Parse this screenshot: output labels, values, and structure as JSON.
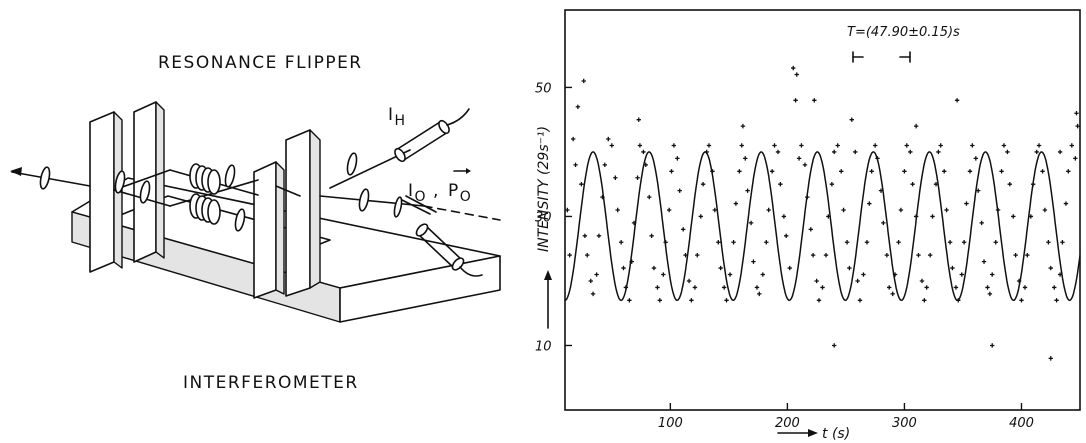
{
  "diagram": {
    "title": "RESONANCE FLIPPER",
    "bottom_label": "INTERFEROMETER",
    "label_ih_main": "I",
    "label_ih_sub": "H",
    "label_io_main": "I",
    "label_io_sub": "O",
    "label_po_main": "P",
    "label_po_sub": "O",
    "label_sep": ","
  },
  "chart_data": {
    "type": "scatter",
    "title": "",
    "ylabel": "INTENSITY  (29s⁻¹)",
    "xlabel": "t (s)",
    "annotation": "T=(47.90±0.15)s",
    "xlim": [
      10,
      450
    ],
    "ylim": [
      0,
      62
    ],
    "xticks": [
      100,
      200,
      300,
      400
    ],
    "yticks": [
      10,
      30,
      50
    ],
    "xtick_labels": [
      "100",
      "200",
      "300",
      "400"
    ],
    "ytick_labels": [
      "10",
      "30",
      "50"
    ],
    "fit": {
      "mean": 28.5,
      "amplitude": 11.5,
      "period": 47.9,
      "phase_ref": 22
    },
    "points": [
      [
        12,
        31
      ],
      [
        14,
        24
      ],
      [
        17,
        42
      ],
      [
        19,
        38
      ],
      [
        21,
        47
      ],
      [
        24,
        35
      ],
      [
        27,
        27
      ],
      [
        29,
        24
      ],
      [
        32,
        20
      ],
      [
        34,
        18
      ],
      [
        37,
        21
      ],
      [
        39,
        27
      ],
      [
        42,
        33
      ],
      [
        44,
        38
      ],
      [
        47,
        42
      ],
      [
        50,
        41
      ],
      [
        53,
        36
      ],
      [
        55,
        31
      ],
      [
        58,
        26
      ],
      [
        60,
        22
      ],
      [
        62,
        19
      ],
      [
        65,
        17
      ],
      [
        67,
        23
      ],
      [
        69,
        29
      ],
      [
        72,
        36
      ],
      [
        74,
        41
      ],
      [
        77,
        40
      ],
      [
        79,
        38
      ],
      [
        82,
        33
      ],
      [
        84,
        27
      ],
      [
        86,
        22
      ],
      [
        89,
        19
      ],
      [
        91,
        17
      ],
      [
        94,
        21
      ],
      [
        96,
        26
      ],
      [
        99,
        31
      ],
      [
        101,
        37
      ],
      [
        103,
        41
      ],
      [
        106,
        39
      ],
      [
        108,
        34
      ],
      [
        111,
        28
      ],
      [
        113,
        24
      ],
      [
        116,
        20
      ],
      [
        118,
        17
      ],
      [
        121,
        19
      ],
      [
        123,
        24
      ],
      [
        126,
        30
      ],
      [
        128,
        35
      ],
      [
        131,
        40
      ],
      [
        133,
        41
      ],
      [
        136,
        37
      ],
      [
        138,
        31
      ],
      [
        141,
        26
      ],
      [
        143,
        22
      ],
      [
        146,
        19
      ],
      [
        148,
        17
      ],
      [
        151,
        21
      ],
      [
        154,
        26
      ],
      [
        156,
        32
      ],
      [
        159,
        37
      ],
      [
        161,
        41
      ],
      [
        164,
        39
      ],
      [
        166,
        34
      ],
      [
        169,
        29
      ],
      [
        171,
        23
      ],
      [
        174,
        19
      ],
      [
        176,
        18
      ],
      [
        179,
        21
      ],
      [
        182,
        26
      ],
      [
        184,
        31
      ],
      [
        187,
        37
      ],
      [
        189,
        41
      ],
      [
        192,
        40
      ],
      [
        194,
        35
      ],
      [
        197,
        30
      ],
      [
        199,
        27
      ],
      [
        202,
        22
      ],
      [
        205,
        53
      ],
      [
        207,
        48
      ],
      [
        210,
        39
      ],
      [
        212,
        41
      ],
      [
        215,
        38
      ],
      [
        217,
        33
      ],
      [
        220,
        28
      ],
      [
        222,
        24
      ],
      [
        225,
        20
      ],
      [
        227,
        17
      ],
      [
        230,
        19
      ],
      [
        233,
        24
      ],
      [
        235,
        30
      ],
      [
        238,
        35
      ],
      [
        240,
        40
      ],
      [
        243,
        41
      ],
      [
        246,
        37
      ],
      [
        248,
        31
      ],
      [
        251,
        26
      ],
      [
        253,
        22
      ],
      [
        255,
        45
      ],
      [
        258,
        40
      ],
      [
        260,
        20
      ],
      [
        262,
        17
      ],
      [
        265,
        21
      ],
      [
        268,
        26
      ],
      [
        270,
        32
      ],
      [
        272,
        37
      ],
      [
        275,
        41
      ],
      [
        277,
        39
      ],
      [
        280,
        34
      ],
      [
        282,
        29
      ],
      [
        285,
        24
      ],
      [
        287,
        19
      ],
      [
        290,
        18
      ],
      [
        292,
        21
      ],
      [
        295,
        26
      ],
      [
        297,
        31
      ],
      [
        300,
        37
      ],
      [
        302,
        41
      ],
      [
        305,
        40
      ],
      [
        307,
        35
      ],
      [
        310,
        30
      ],
      [
        312,
        24
      ],
      [
        315,
        20
      ],
      [
        317,
        17
      ],
      [
        319,
        19
      ],
      [
        322,
        24
      ],
      [
        324,
        30
      ],
      [
        327,
        35
      ],
      [
        329,
        40
      ],
      [
        331,
        41
      ],
      [
        334,
        37
      ],
      [
        336,
        31
      ],
      [
        339,
        26
      ],
      [
        341,
        22
      ],
      [
        344,
        19
      ],
      [
        346,
        17
      ],
      [
        349,
        21
      ],
      [
        351,
        26
      ],
      [
        353,
        32
      ],
      [
        356,
        37
      ],
      [
        358,
        41
      ],
      [
        361,
        39
      ],
      [
        363,
        34
      ],
      [
        366,
        29
      ],
      [
        368,
        23
      ],
      [
        371,
        19
      ],
      [
        373,
        18
      ],
      [
        375,
        21
      ],
      [
        378,
        26
      ],
      [
        380,
        31
      ],
      [
        383,
        37
      ],
      [
        385,
        41
      ],
      [
        388,
        40
      ],
      [
        390,
        35
      ],
      [
        393,
        30
      ],
      [
        395,
        24
      ],
      [
        398,
        20
      ],
      [
        400,
        17
      ],
      [
        403,
        19
      ],
      [
        405,
        24
      ],
      [
        408,
        30
      ],
      [
        410,
        35
      ],
      [
        413,
        40
      ],
      [
        415,
        41
      ],
      [
        418,
        37
      ],
      [
        420,
        31
      ],
      [
        423,
        26
      ],
      [
        425,
        22
      ],
      [
        428,
        19
      ],
      [
        430,
        17
      ],
      [
        433,
        21
      ],
      [
        435,
        26
      ],
      [
        438,
        32
      ],
      [
        440,
        37
      ],
      [
        443,
        41
      ],
      [
        446,
        39
      ],
      [
        448,
        44
      ],
      [
        26,
        51
      ],
      [
        73,
        45
      ],
      [
        162,
        44
      ],
      [
        208,
        52
      ],
      [
        223,
        48
      ],
      [
        240,
        10
      ],
      [
        310,
        44
      ],
      [
        345,
        48
      ],
      [
        375,
        10
      ],
      [
        425,
        8
      ],
      [
        433,
        40
      ],
      [
        447,
        46
      ]
    ]
  }
}
